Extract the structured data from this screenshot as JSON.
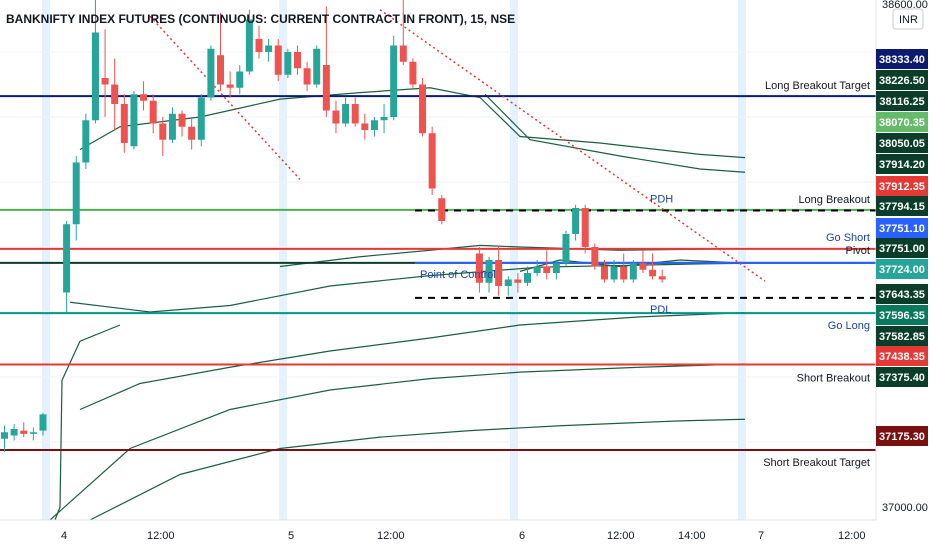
{
  "chart_data": {
    "type": "candlestick",
    "title": "BANKNIFTY INDEX FUTURES (CONTINUOUS: CURRENT CONTRACT IN FRONT), 15, NSE",
    "currency": "INR",
    "y_axis": {
      "range": [
        36960,
        38560
      ],
      "tick_labels": [
        "38600.00",
        "37000.00"
      ]
    },
    "x_axis": {
      "tick_labels": [
        "4",
        "12:00",
        "5",
        "12:00",
        "6",
        "12:00",
        "14:00",
        "7",
        "12:00"
      ]
    },
    "colors": {
      "up": "#26a69a",
      "down": "#ef5350",
      "session_band": "#e3f2fd",
      "vwap_bands": "#1b5e3f",
      "trend": "#e53935"
    },
    "levels": [
      {
        "name": "Long Breakout Target",
        "price": 38264.3,
        "color": "#0d1a6e",
        "style": "solid",
        "label": "Long Breakout Target"
      },
      {
        "name": "Long Breakout",
        "price": 37914.2,
        "color": "#4caf50",
        "style": "solid",
        "label": "Long Breakout"
      },
      {
        "name": "Go Short",
        "price": 37794.15,
        "color": "#e53935",
        "style": "solid",
        "label": "Go Short"
      },
      {
        "name": "Pivot",
        "price": 37751.0,
        "color": "#0b3d2b",
        "style": "solid",
        "label": "Pivot"
      },
      {
        "name": "Point of Control",
        "price": 37751.1,
        "color": "#2962ff",
        "style": "solid",
        "label": "Point of Control"
      },
      {
        "name": "PDH",
        "price": 37912.35,
        "color": "#000000",
        "style": "dashed",
        "label": "PDH"
      },
      {
        "name": "PDL",
        "price": 37643.35,
        "color": "#000000",
        "style": "dashed",
        "label": "PDL"
      },
      {
        "name": "Go Long",
        "price": 37596.35,
        "color": "#009688",
        "style": "solid",
        "label": "Go Long"
      },
      {
        "name": "Short Breakout",
        "price": 37438.35,
        "color": "#e53935",
        "style": "solid",
        "label": "Short Breakout"
      },
      {
        "name": "Short Breakout Target",
        "price": 37175.3,
        "color": "#7b1010",
        "style": "solid",
        "label": "Short Breakout Target"
      }
    ],
    "price_badges": [
      {
        "text": "38333.40",
        "bg": "#0d1a6e",
        "fg": "#ffffff",
        "price": 38333.4
      },
      {
        "text": "38226.50",
        "bg": "#0b3d2b",
        "fg": "#ffffff",
        "price": 38226.5
      },
      {
        "text": "38116.25",
        "bg": "#0b3d2b",
        "fg": "#ffffff",
        "price": 38116.25
      },
      {
        "text": "38070.35",
        "bg": "#66bb6a",
        "fg": "#ffffff",
        "price": 38070.35
      },
      {
        "text": "38050.05",
        "bg": "#0b3d2b",
        "fg": "#ffffff",
        "price": 38050.05
      },
      {
        "text": "37914.20",
        "bg": "#0b3d2b",
        "fg": "#ffffff",
        "price": 37914.2
      },
      {
        "text": "37912.35",
        "bg": "#e53935",
        "fg": "#ffffff",
        "price": 37912.35
      },
      {
        "text": "37794.15",
        "bg": "#0b3d2b",
        "fg": "#ffffff",
        "price": 37794.15
      },
      {
        "text": "37751.10",
        "bg": "#2962ff",
        "fg": "#ffffff",
        "price": 37751.1
      },
      {
        "text": "37751.00",
        "bg": "#0b3d2b",
        "fg": "#ffffff",
        "price": 37751.0
      },
      {
        "text": "37724.00",
        "bg": "#26a69a",
        "fg": "#ffffff",
        "price": 37724.0
      },
      {
        "text": "37643.35",
        "bg": "#0b3d2b",
        "fg": "#ffffff",
        "price": 37643.35
      },
      {
        "text": "37596.35",
        "bg": "#0a7a5c",
        "fg": "#ffffff",
        "price": 37596.35
      },
      {
        "text": "37582.85",
        "bg": "#0b3d2b",
        "fg": "#ffffff",
        "price": 37582.85
      },
      {
        "text": "37438.35",
        "bg": "#e53935",
        "fg": "#ffffff",
        "price": 37438.35
      },
      {
        "text": "37375.40",
        "bg": "#0b3d2b",
        "fg": "#ffffff",
        "price": 37375.4
      },
      {
        "text": "37175.30",
        "bg": "#7b1010",
        "fg": "#ffffff",
        "price": 37175.3
      }
    ],
    "candles": [
      {
        "o": 37210,
        "h": 37250,
        "l": 37170,
        "c": 37230
      },
      {
        "o": 37220,
        "h": 37255,
        "l": 37205,
        "c": 37240
      },
      {
        "o": 37235,
        "h": 37260,
        "l": 37215,
        "c": 37225
      },
      {
        "o": 37225,
        "h": 37245,
        "l": 37205,
        "c": 37230
      },
      {
        "o": 37235,
        "h": 37290,
        "l": 37220,
        "c": 37285
      },
      {
        "o": 37660,
        "h": 37880,
        "l": 37600,
        "c": 37870
      },
      {
        "o": 37870,
        "h": 38080,
        "l": 37820,
        "c": 38060
      },
      {
        "o": 38060,
        "h": 38210,
        "l": 38040,
        "c": 38190
      },
      {
        "o": 38190,
        "h": 38560,
        "l": 38180,
        "c": 38460
      },
      {
        "o": 38320,
        "h": 38470,
        "l": 38200,
        "c": 38300
      },
      {
        "o": 38300,
        "h": 38380,
        "l": 38160,
        "c": 38240
      },
      {
        "o": 38240,
        "h": 38270,
        "l": 38090,
        "c": 38120
      },
      {
        "o": 38110,
        "h": 38280,
        "l": 38100,
        "c": 38270
      },
      {
        "o": 38270,
        "h": 38310,
        "l": 38220,
        "c": 38250
      },
      {
        "o": 38250,
        "h": 38270,
        "l": 38150,
        "c": 38180
      },
      {
        "o": 38180,
        "h": 38200,
        "l": 38080,
        "c": 38130
      },
      {
        "o": 38130,
        "h": 38230,
        "l": 38120,
        "c": 38210
      },
      {
        "o": 38210,
        "h": 38220,
        "l": 38140,
        "c": 38170
      },
      {
        "o": 38170,
        "h": 38200,
        "l": 38100,
        "c": 38130
      },
      {
        "o": 38130,
        "h": 38270,
        "l": 38110,
        "c": 38260
      },
      {
        "o": 38260,
        "h": 38420,
        "l": 38250,
        "c": 38410
      },
      {
        "o": 38390,
        "h": 38520,
        "l": 38280,
        "c": 38300
      },
      {
        "o": 38300,
        "h": 38340,
        "l": 38260,
        "c": 38290
      },
      {
        "o": 38290,
        "h": 38360,
        "l": 38270,
        "c": 38340
      },
      {
        "o": 38340,
        "h": 38530,
        "l": 38330,
        "c": 38500
      },
      {
        "o": 38440,
        "h": 38480,
        "l": 38380,
        "c": 38400
      },
      {
        "o": 38400,
        "h": 38440,
        "l": 38370,
        "c": 38420
      },
      {
        "o": 38420,
        "h": 38440,
        "l": 38310,
        "c": 38330
      },
      {
        "o": 38330,
        "h": 38410,
        "l": 38320,
        "c": 38400
      },
      {
        "o": 38400,
        "h": 38420,
        "l": 38330,
        "c": 38350
      },
      {
        "o": 38350,
        "h": 38370,
        "l": 38280,
        "c": 38300
      },
      {
        "o": 38300,
        "h": 38420,
        "l": 38290,
        "c": 38410
      },
      {
        "o": 38360,
        "h": 38540,
        "l": 38200,
        "c": 38220
      },
      {
        "o": 38220,
        "h": 38250,
        "l": 38150,
        "c": 38180
      },
      {
        "o": 38180,
        "h": 38260,
        "l": 38170,
        "c": 38240
      },
      {
        "o": 38240,
        "h": 38260,
        "l": 38170,
        "c": 38180
      },
      {
        "o": 38180,
        "h": 38210,
        "l": 38130,
        "c": 38160
      },
      {
        "o": 38160,
        "h": 38200,
        "l": 38140,
        "c": 38190
      },
      {
        "o": 38190,
        "h": 38240,
        "l": 38150,
        "c": 38200
      },
      {
        "o": 38200,
        "h": 38450,
        "l": 38190,
        "c": 38420
      },
      {
        "o": 38420,
        "h": 38560,
        "l": 38360,
        "c": 38370
      },
      {
        "o": 38370,
        "h": 38380,
        "l": 38290,
        "c": 38300
      },
      {
        "o": 38300,
        "h": 38320,
        "l": 38140,
        "c": 38150
      },
      {
        "o": 38150,
        "h": 38170,
        "l": 37960,
        "c": 37980
      },
      {
        "o": 37950,
        "h": 37960,
        "l": 37870,
        "c": 37880
      },
      {
        "o": 37780,
        "h": 37800,
        "l": 37660,
        "c": 37690
      },
      {
        "o": 37690,
        "h": 37770,
        "l": 37660,
        "c": 37760
      },
      {
        "o": 37760,
        "h": 37800,
        "l": 37650,
        "c": 37680
      },
      {
        "o": 37680,
        "h": 37710,
        "l": 37650,
        "c": 37700
      },
      {
        "o": 37700,
        "h": 37720,
        "l": 37660,
        "c": 37690
      },
      {
        "o": 37690,
        "h": 37740,
        "l": 37680,
        "c": 37720
      },
      {
        "o": 37720,
        "h": 37760,
        "l": 37710,
        "c": 37740
      },
      {
        "o": 37740,
        "h": 37790,
        "l": 37700,
        "c": 37720
      },
      {
        "o": 37720,
        "h": 37760,
        "l": 37700,
        "c": 37750
      },
      {
        "o": 37750,
        "h": 37850,
        "l": 37740,
        "c": 37840
      },
      {
        "o": 37840,
        "h": 37930,
        "l": 37820,
        "c": 37920
      },
      {
        "o": 37920,
        "h": 37930,
        "l": 37780,
        "c": 37800
      },
      {
        "o": 37800,
        "h": 37810,
        "l": 37730,
        "c": 37740
      },
      {
        "o": 37740,
        "h": 37760,
        "l": 37690,
        "c": 37700
      },
      {
        "o": 37700,
        "h": 37760,
        "l": 37690,
        "c": 37740
      },
      {
        "o": 37740,
        "h": 37780,
        "l": 37690,
        "c": 37700
      },
      {
        "o": 37700,
        "h": 37760,
        "l": 37690,
        "c": 37750
      },
      {
        "o": 37750,
        "h": 37790,
        "l": 37720,
        "c": 37730
      },
      {
        "o": 37730,
        "h": 37780,
        "l": 37700,
        "c": 37710
      },
      {
        "o": 37710,
        "h": 37730,
        "l": 37690,
        "c": 37700
      }
    ]
  }
}
